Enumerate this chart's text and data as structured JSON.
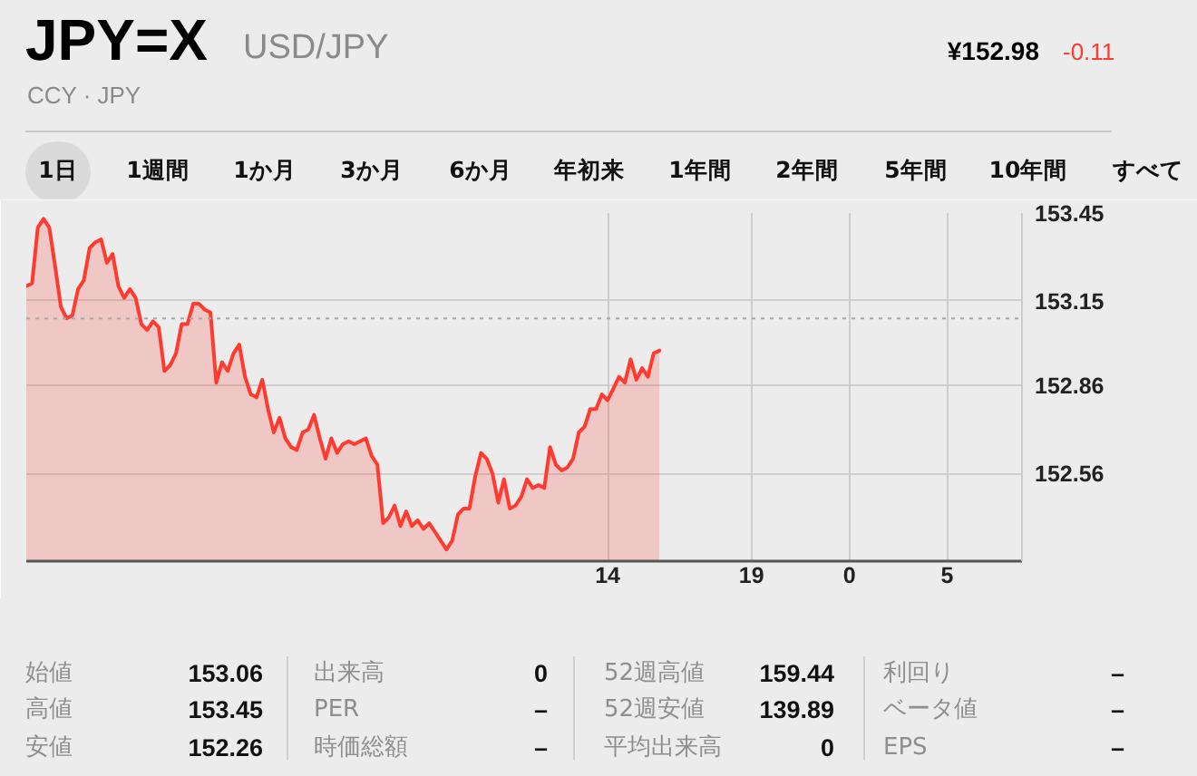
{
  "chart_data": {
    "type": "area",
    "title": "JPY=X",
    "subtitle": "USD/JPY",
    "categories": [
      null,
      null,
      null,
      null,
      null,
      null,
      null,
      null,
      null,
      null,
      null,
      null,
      null,
      null,
      null,
      null,
      null,
      null,
      null,
      null,
      null,
      null,
      null,
      null,
      null,
      null,
      null,
      null,
      null,
      null,
      null,
      null,
      null,
      null,
      null,
      null,
      null,
      null,
      null,
      null,
      null,
      null,
      null,
      null,
      null,
      null,
      null,
      null,
      null,
      null,
      null,
      null,
      null,
      null,
      null,
      null,
      null,
      null,
      null,
      null,
      null,
      null,
      null,
      null,
      null,
      null,
      null,
      null,
      null,
      null,
      null,
      null,
      null,
      null,
      null,
      null,
      null,
      null,
      null,
      null,
      null,
      null,
      null,
      null,
      null,
      null,
      null,
      null,
      null,
      null,
      null,
      null,
      null,
      null,
      null,
      null,
      null,
      null,
      null,
      null,
      null,
      "14",
      null,
      null,
      null,
      null,
      null,
      null,
      null,
      null,
      null,
      null,
      null,
      null,
      null,
      null,
      null,
      null,
      null,
      null,
      null,
      null,
      null,
      null,
      null,
      null,
      "19",
      null,
      null,
      null,
      null,
      null,
      null,
      null,
      null,
      null,
      null,
      null,
      null,
      null,
      null,
      null,
      null,
      "0",
      null,
      null,
      null,
      null,
      null,
      null,
      null,
      null,
      null,
      null,
      null,
      null,
      null,
      null,
      null,
      null,
      "5",
      null,
      null,
      null,
      null,
      null,
      null,
      null,
      null,
      null,
      null,
      null,
      null,
      null
    ],
    "series": [
      {
        "color": "#ff3b30",
        "values": [
          153.2,
          153.21,
          153.4,
          153.43,
          153.4,
          153.27,
          153.13,
          153.09,
          153.1,
          153.19,
          153.22,
          153.33,
          153.35,
          153.36,
          153.28,
          153.31,
          153.2,
          153.16,
          153.19,
          153.16,
          153.07,
          153.05,
          153.08,
          153.06,
          152.91,
          152.93,
          152.97,
          153.07,
          153.07,
          153.14,
          153.14,
          153.12,
          153.11,
          152.87,
          152.94,
          152.91,
          152.97,
          153.0,
          152.89,
          152.83,
          152.82,
          152.88,
          152.78,
          152.7,
          152.75,
          152.68,
          152.65,
          152.64,
          152.7,
          152.71,
          152.76,
          152.68,
          152.61,
          152.68,
          152.63,
          152.66,
          152.67,
          152.66,
          152.67,
          152.68,
          152.62,
          152.59,
          152.39,
          152.41,
          152.45,
          152.38,
          152.43,
          152.38,
          152.4,
          152.37,
          152.39,
          152.36,
          152.33,
          152.3,
          152.33,
          152.42,
          152.44,
          152.44,
          152.55,
          152.63,
          152.61,
          152.56,
          152.46,
          152.54,
          152.44,
          152.45,
          152.48,
          152.54,
          152.51,
          152.52,
          152.51,
          152.65,
          152.59,
          152.57,
          152.58,
          152.61,
          152.7,
          152.72,
          152.78,
          152.78,
          152.83,
          152.81,
          152.85,
          152.89,
          152.87,
          152.95,
          152.88,
          152.92,
          152.89,
          152.97,
          152.98,
          null,
          null,
          null,
          null,
          null,
          null,
          null,
          null,
          null,
          null,
          null,
          null,
          null,
          null,
          null,
          null,
          null,
          null,
          null,
          null,
          null,
          null,
          null,
          null,
          null,
          null,
          null,
          null,
          null,
          null,
          null,
          null,
          null,
          null,
          null,
          null,
          null,
          null,
          null,
          null,
          null,
          null,
          null,
          null,
          null,
          null,
          null,
          null,
          null,
          null,
          null,
          null,
          null,
          null,
          null,
          null,
          null,
          null,
          null,
          null,
          null,
          null,
          null
        ]
      }
    ],
    "ylim": [
      152.26,
      153.45
    ],
    "yticks": [
      152.56,
      152.86,
      153.15,
      153.45
    ],
    "ref_lines": [
      {
        "axis": "y",
        "value": 153.09,
        "color": "#a8a8a8",
        "line_style": "dotted"
      }
    ],
    "grid": true,
    "annotations": [
      "¥152.98",
      "-0.11",
      "CCY · JPY",
      "1日",
      "1週間",
      "1か月",
      "3か月",
      "6か月",
      "年初来",
      "1年間",
      "2年間",
      "5年間",
      "10年間",
      "すべて",
      "始値",
      "153.06",
      "高値",
      "153.45",
      "安値",
      "152.26",
      "出来高",
      "0",
      "PER",
      "–",
      "時価総額",
      "–",
      "52週高値",
      "159.44",
      "52週安値",
      "139.89",
      "平均出来高",
      "0",
      "利回り",
      "–",
      "ベータ値",
      "–",
      "EPS",
      "–"
    ]
  }
}
